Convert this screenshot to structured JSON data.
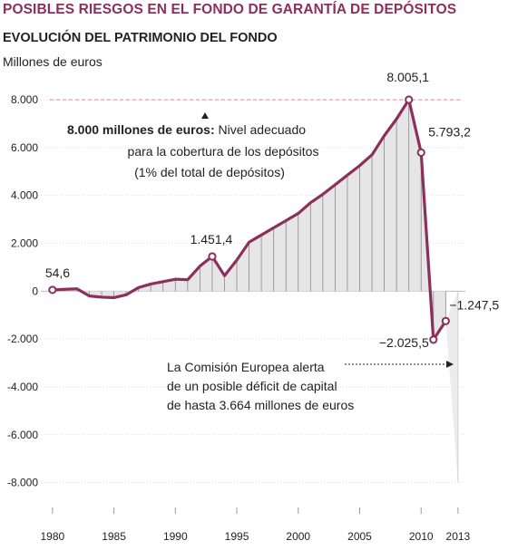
{
  "title": "POSIBLES RIESGOS EN EL FONDO DE GARANTÍA DE DEPÓSITOS",
  "subtitle": "EVOLUCIÓN DEL PATRIMONIO DEL FONDO",
  "unit_label": "Millones de euros",
  "colors": {
    "title": "#8c2f5c",
    "line": "#8c2f5c",
    "area": "#e6e6e6",
    "reference": "#e0a0b8"
  },
  "annotations": {
    "target_bold": "8.000 millones de euros:",
    "target_rest": " Nivel adecuado",
    "target_line2": "para la cobertura de los depósitos",
    "target_line3": "(1% del total de depósitos)",
    "warning_line1": "La Comisión Europea alerta",
    "warning_line2": "de un posible déficit de capital",
    "warning_line3": "de hasta 3.664 millones de euros"
  },
  "chart_data": {
    "type": "area",
    "x": [
      1980,
      1981,
      1982,
      1983,
      1984,
      1985,
      1986,
      1987,
      1988,
      1989,
      1990,
      1991,
      1992,
      1993,
      1994,
      1995,
      1996,
      1997,
      1998,
      1999,
      2000,
      2001,
      2002,
      2003,
      2004,
      2005,
      2006,
      2007,
      2008,
      2009,
      2010,
      2011,
      2012
    ],
    "series": [
      {
        "values": [
          54.6,
          80,
          100,
          -200,
          -250,
          -270,
          -150,
          150,
          300,
          400,
          500,
          480,
          1050,
          1451.4,
          650,
          1300,
          2050,
          2350,
          2650,
          2950,
          3250,
          3700,
          4050,
          4450,
          4850,
          5250,
          5700,
          6500,
          7200,
          8005.1,
          5793.2,
          -2025.5,
          -1247.5
        ]
      }
    ],
    "labeled_points": [
      {
        "x": 1980,
        "y": 54.6,
        "label": "54,6"
      },
      {
        "x": 1993,
        "y": 1451.4,
        "label": "1.451,4"
      },
      {
        "x": 2009,
        "y": 8005.1,
        "label": "8.005,1"
      },
      {
        "x": 2010,
        "y": 5793.2,
        "label": "5.793,2"
      },
      {
        "x": 2011,
        "y": -2025.5,
        "label": "−2.025,5"
      },
      {
        "x": 2012,
        "y": -1247.5,
        "label": "−1.247,5"
      }
    ],
    "reference_line": {
      "y": 8000
    },
    "projection": {
      "x": 2013,
      "y": -8000
    },
    "ylim": [
      -9000,
      8800
    ],
    "xlim": [
      1979.2,
      2013.6
    ],
    "yticks": [
      8000,
      6000,
      4000,
      2000,
      0,
      -2000,
      -4000,
      -6000,
      -8000
    ],
    "ytick_labels": [
      "8.000",
      "6.000",
      "4.000",
      "2.000",
      "0",
      "-2.000",
      "-4.000",
      "-6.000",
      "-8.000"
    ],
    "xticks": [
      1980,
      1985,
      1990,
      1995,
      2000,
      2005,
      2010,
      2013
    ],
    "xtick_labels": [
      "1980",
      "1985",
      "1990",
      "1995",
      "2000",
      "2005",
      "2010",
      "2013"
    ],
    "grid": true
  }
}
